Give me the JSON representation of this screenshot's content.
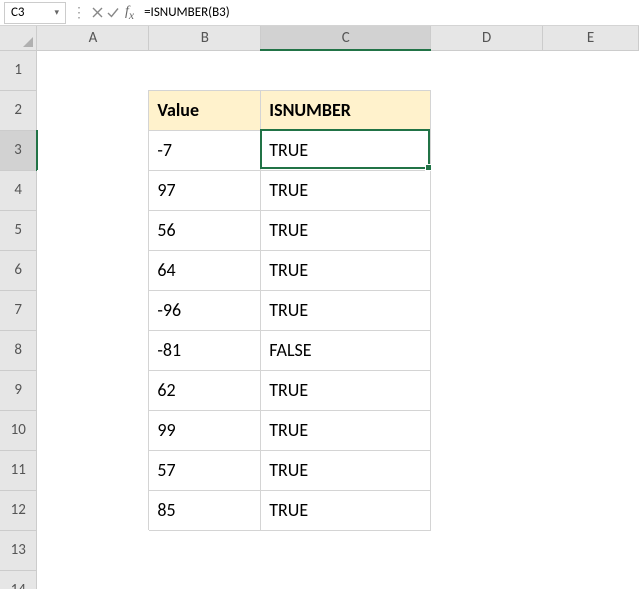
{
  "formulaBar": {
    "nameBox": "C3",
    "formula": "=ISNUMBER(B3)"
  },
  "columns": [
    "A",
    "B",
    "C",
    "D",
    "E"
  ],
  "rowCount": 14,
  "activeCell": {
    "col": "C",
    "row": 3
  },
  "activeColIndex": 2,
  "activeRowIndex": 2,
  "tableHeaders": {
    "value": "Value",
    "isnumber": "ISNUMBER"
  },
  "rows": [
    {
      "value": "-7",
      "result": "TRUE"
    },
    {
      "value": "97",
      "result": "TRUE"
    },
    {
      "value": "56",
      "result": "TRUE"
    },
    {
      "value": "64",
      "result": "TRUE"
    },
    {
      "value": "-96",
      "result": "TRUE"
    },
    {
      "value": "-81",
      "result": "FALSE"
    },
    {
      "value": "62",
      "result": "TRUE"
    },
    {
      "value": "99",
      "result": "TRUE"
    },
    {
      "value": "57",
      "result": "TRUE"
    },
    {
      "value": "85",
      "result": "TRUE"
    }
  ],
  "style": {
    "headerBg": "#fff2cc",
    "selectionColor": "#217346",
    "gridBorder": "#d4d4d4",
    "colHeaderBg": "#e6e6e6",
    "fontSizeCell": 18,
    "rowHeightPx": 40,
    "colWidths": {
      "A": 112,
      "B": 112,
      "C": 170,
      "D": 112,
      "E": 96
    }
  }
}
